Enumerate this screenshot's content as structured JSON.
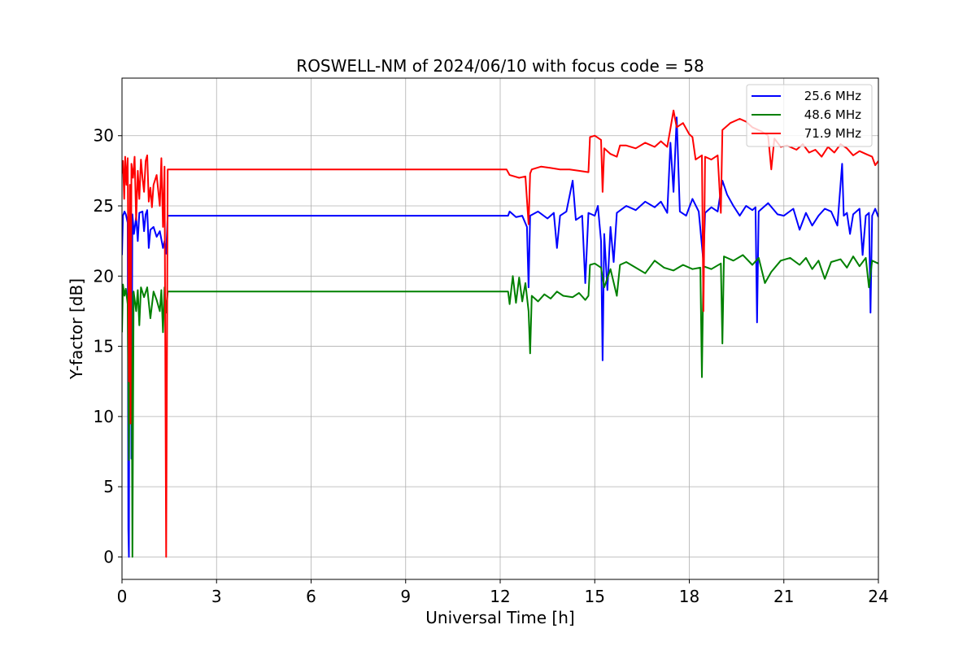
{
  "chart_data": {
    "type": "line",
    "title": "ROSWELL-NM of 2024/06/10 with focus code = 58",
    "xlabel": "Universal Time [h]",
    "ylabel": "Y-factor [dB]",
    "xlim": [
      0,
      24
    ],
    "ylim": [
      -1.6,
      34.1
    ],
    "xticks": [
      0,
      3,
      6,
      9,
      12,
      15,
      18,
      21,
      24
    ],
    "yticks": [
      0,
      5,
      10,
      15,
      20,
      25,
      30
    ],
    "grid": true,
    "legend_position": "top-right",
    "series": [
      {
        "name": "25.6 MHz",
        "color": "#0000ff",
        "points": [
          [
            0.0,
            21.5
          ],
          [
            0.03,
            24.3
          ],
          [
            0.08,
            24.6
          ],
          [
            0.12,
            24.4
          ],
          [
            0.18,
            23.8
          ],
          [
            0.2,
            2.0
          ],
          [
            0.22,
            0.0
          ],
          [
            0.24,
            24.0
          ],
          [
            0.28,
            24.5
          ],
          [
            0.3,
            7.0
          ],
          [
            0.33,
            24.4
          ],
          [
            0.38,
            23.0
          ],
          [
            0.45,
            24.2
          ],
          [
            0.5,
            22.5
          ],
          [
            0.55,
            24.5
          ],
          [
            0.65,
            24.6
          ],
          [
            0.7,
            23.2
          ],
          [
            0.75,
            24.4
          ],
          [
            0.8,
            24.7
          ],
          [
            0.85,
            22.0
          ],
          [
            0.9,
            23.3
          ],
          [
            1.0,
            23.5
          ],
          [
            1.1,
            22.8
          ],
          [
            1.2,
            23.2
          ],
          [
            1.3,
            22.0
          ],
          [
            1.35,
            22.5
          ],
          [
            1.4,
            21.6
          ],
          [
            1.45,
            24.3
          ],
          [
            12.25,
            24.3
          ],
          [
            12.3,
            24.6
          ],
          [
            12.5,
            24.2
          ],
          [
            12.7,
            24.3
          ],
          [
            12.85,
            23.5
          ],
          [
            12.9,
            19.2
          ],
          [
            12.95,
            24.3
          ],
          [
            13.2,
            24.6
          ],
          [
            13.5,
            24.1
          ],
          [
            13.7,
            24.5
          ],
          [
            13.8,
            22.0
          ],
          [
            13.9,
            24.3
          ],
          [
            14.1,
            24.6
          ],
          [
            14.3,
            26.8
          ],
          [
            14.4,
            24.0
          ],
          [
            14.6,
            24.3
          ],
          [
            14.7,
            19.5
          ],
          [
            14.8,
            24.5
          ],
          [
            15.0,
            24.3
          ],
          [
            15.1,
            25.0
          ],
          [
            15.2,
            22.5
          ],
          [
            15.25,
            14.0
          ],
          [
            15.3,
            23.0
          ],
          [
            15.4,
            19.0
          ],
          [
            15.5,
            23.5
          ],
          [
            15.6,
            21.0
          ],
          [
            15.7,
            24.5
          ],
          [
            16.0,
            25.0
          ],
          [
            16.3,
            24.7
          ],
          [
            16.6,
            25.3
          ],
          [
            16.9,
            24.9
          ],
          [
            17.1,
            25.3
          ],
          [
            17.3,
            24.5
          ],
          [
            17.4,
            29.5
          ],
          [
            17.5,
            26.0
          ],
          [
            17.6,
            31.3
          ],
          [
            17.7,
            24.6
          ],
          [
            17.9,
            24.3
          ],
          [
            18.1,
            25.5
          ],
          [
            18.3,
            24.6
          ],
          [
            18.45,
            21.0
          ],
          [
            18.5,
            24.5
          ],
          [
            18.7,
            24.9
          ],
          [
            18.9,
            24.6
          ],
          [
            19.05,
            26.8
          ],
          [
            19.2,
            25.8
          ],
          [
            19.4,
            25.0
          ],
          [
            19.6,
            24.3
          ],
          [
            19.8,
            25.0
          ],
          [
            20.0,
            24.7
          ],
          [
            20.1,
            24.9
          ],
          [
            20.15,
            16.7
          ],
          [
            20.2,
            24.6
          ],
          [
            20.5,
            25.2
          ],
          [
            20.8,
            24.4
          ],
          [
            21.0,
            24.3
          ],
          [
            21.3,
            24.8
          ],
          [
            21.5,
            23.3
          ],
          [
            21.7,
            24.5
          ],
          [
            21.9,
            23.6
          ],
          [
            22.1,
            24.3
          ],
          [
            22.3,
            24.8
          ],
          [
            22.5,
            24.6
          ],
          [
            22.7,
            23.6
          ],
          [
            22.85,
            28.0
          ],
          [
            22.9,
            24.3
          ],
          [
            23.0,
            24.5
          ],
          [
            23.1,
            23.0
          ],
          [
            23.2,
            24.4
          ],
          [
            23.4,
            24.8
          ],
          [
            23.5,
            21.5
          ],
          [
            23.6,
            24.3
          ],
          [
            23.7,
            24.5
          ],
          [
            23.75,
            17.4
          ],
          [
            23.8,
            24.3
          ],
          [
            23.9,
            24.8
          ],
          [
            24.0,
            24.2
          ]
        ]
      },
      {
        "name": "48.6 MHz",
        "color": "#008000",
        "points": [
          [
            0.0,
            16.0
          ],
          [
            0.03,
            19.4
          ],
          [
            0.08,
            18.6
          ],
          [
            0.12,
            19.1
          ],
          [
            0.18,
            18.0
          ],
          [
            0.22,
            6.9
          ],
          [
            0.25,
            19.0
          ],
          [
            0.28,
            11.1
          ],
          [
            0.3,
            18.8
          ],
          [
            0.33,
            0.0
          ],
          [
            0.37,
            18.9
          ],
          [
            0.45,
            17.5
          ],
          [
            0.5,
            19.0
          ],
          [
            0.55,
            16.5
          ],
          [
            0.6,
            19.2
          ],
          [
            0.7,
            18.5
          ],
          [
            0.8,
            19.2
          ],
          [
            0.9,
            17.0
          ],
          [
            1.0,
            18.9
          ],
          [
            1.1,
            18.3
          ],
          [
            1.2,
            17.5
          ],
          [
            1.25,
            19.0
          ],
          [
            1.3,
            16.0
          ],
          [
            1.35,
            19.2
          ],
          [
            1.4,
            17.4
          ],
          [
            1.45,
            18.9
          ],
          [
            12.25,
            18.9
          ],
          [
            12.3,
            18.0
          ],
          [
            12.4,
            20.0
          ],
          [
            12.5,
            18.1
          ],
          [
            12.6,
            19.9
          ],
          [
            12.7,
            18.2
          ],
          [
            12.8,
            19.5
          ],
          [
            12.9,
            17.5
          ],
          [
            12.95,
            14.5
          ],
          [
            13.0,
            18.6
          ],
          [
            13.2,
            18.2
          ],
          [
            13.4,
            18.7
          ],
          [
            13.6,
            18.4
          ],
          [
            13.8,
            18.9
          ],
          [
            14.0,
            18.6
          ],
          [
            14.3,
            18.5
          ],
          [
            14.5,
            18.8
          ],
          [
            14.7,
            18.3
          ],
          [
            14.8,
            18.6
          ],
          [
            14.85,
            20.8
          ],
          [
            15.0,
            20.9
          ],
          [
            15.2,
            20.6
          ],
          [
            15.3,
            19.2
          ],
          [
            15.5,
            20.5
          ],
          [
            15.7,
            18.6
          ],
          [
            15.8,
            20.8
          ],
          [
            16.0,
            21.0
          ],
          [
            16.3,
            20.6
          ],
          [
            16.6,
            20.2
          ],
          [
            16.9,
            21.1
          ],
          [
            17.2,
            20.6
          ],
          [
            17.5,
            20.4
          ],
          [
            17.8,
            20.8
          ],
          [
            18.1,
            20.5
          ],
          [
            18.35,
            20.6
          ],
          [
            18.4,
            12.8
          ],
          [
            18.45,
            20.7
          ],
          [
            18.7,
            20.5
          ],
          [
            19.0,
            20.9
          ],
          [
            19.05,
            15.2
          ],
          [
            19.1,
            21.4
          ],
          [
            19.4,
            21.1
          ],
          [
            19.7,
            21.5
          ],
          [
            20.0,
            20.8
          ],
          [
            20.2,
            21.3
          ],
          [
            20.4,
            19.5
          ],
          [
            20.6,
            20.3
          ],
          [
            20.9,
            21.1
          ],
          [
            21.2,
            21.3
          ],
          [
            21.5,
            20.8
          ],
          [
            21.7,
            21.3
          ],
          [
            21.9,
            20.5
          ],
          [
            22.1,
            21.1
          ],
          [
            22.3,
            19.8
          ],
          [
            22.5,
            21.0
          ],
          [
            22.8,
            21.2
          ],
          [
            23.0,
            20.6
          ],
          [
            23.2,
            21.4
          ],
          [
            23.4,
            20.7
          ],
          [
            23.6,
            21.3
          ],
          [
            23.7,
            19.2
          ],
          [
            23.8,
            21.1
          ],
          [
            24.0,
            20.9
          ]
        ]
      },
      {
        "name": "71.9 MHz",
        "color": "#ff0000",
        "points": [
          [
            0.0,
            27.3
          ],
          [
            0.03,
            28.2
          ],
          [
            0.07,
            25.5
          ],
          [
            0.1,
            28.5
          ],
          [
            0.14,
            26.5
          ],
          [
            0.18,
            28.4
          ],
          [
            0.2,
            20.0
          ],
          [
            0.22,
            12.5
          ],
          [
            0.25,
            26.5
          ],
          [
            0.27,
            9.5
          ],
          [
            0.3,
            28.0
          ],
          [
            0.35,
            27.0
          ],
          [
            0.4,
            28.5
          ],
          [
            0.45,
            24.0
          ],
          [
            0.5,
            27.5
          ],
          [
            0.55,
            25.5
          ],
          [
            0.6,
            28.3
          ],
          [
            0.65,
            27.0
          ],
          [
            0.7,
            26.0
          ],
          [
            0.75,
            28.2
          ],
          [
            0.8,
            28.6
          ],
          [
            0.85,
            25.3
          ],
          [
            0.9,
            26.3
          ],
          [
            0.95,
            24.9
          ],
          [
            1.0,
            26.5
          ],
          [
            1.1,
            27.2
          ],
          [
            1.2,
            25.0
          ],
          [
            1.25,
            28.4
          ],
          [
            1.3,
            23.5
          ],
          [
            1.35,
            27.8
          ],
          [
            1.4,
            0.0
          ],
          [
            1.45,
            27.6
          ],
          [
            12.2,
            27.6
          ],
          [
            12.3,
            27.2
          ],
          [
            12.6,
            27.0
          ],
          [
            12.8,
            27.1
          ],
          [
            12.9,
            23.7
          ],
          [
            12.95,
            27.3
          ],
          [
            13.0,
            27.6
          ],
          [
            13.3,
            27.8
          ],
          [
            13.6,
            27.7
          ],
          [
            13.9,
            27.6
          ],
          [
            14.2,
            27.6
          ],
          [
            14.5,
            27.5
          ],
          [
            14.8,
            27.4
          ],
          [
            14.85,
            29.9
          ],
          [
            15.0,
            30.0
          ],
          [
            15.2,
            29.7
          ],
          [
            15.25,
            26.0
          ],
          [
            15.3,
            29.1
          ],
          [
            15.5,
            28.7
          ],
          [
            15.7,
            28.5
          ],
          [
            15.8,
            29.3
          ],
          [
            16.0,
            29.3
          ],
          [
            16.3,
            29.1
          ],
          [
            16.6,
            29.5
          ],
          [
            16.9,
            29.2
          ],
          [
            17.1,
            29.6
          ],
          [
            17.3,
            29.2
          ],
          [
            17.4,
            30.5
          ],
          [
            17.5,
            31.8
          ],
          [
            17.6,
            30.6
          ],
          [
            17.8,
            30.9
          ],
          [
            18.0,
            30.1
          ],
          [
            18.1,
            29.9
          ],
          [
            18.2,
            28.3
          ],
          [
            18.4,
            28.6
          ],
          [
            18.45,
            17.5
          ],
          [
            18.5,
            28.5
          ],
          [
            18.7,
            28.3
          ],
          [
            18.9,
            28.6
          ],
          [
            19.0,
            24.5
          ],
          [
            19.05,
            30.4
          ],
          [
            19.3,
            30.9
          ],
          [
            19.6,
            31.2
          ],
          [
            19.8,
            31.0
          ],
          [
            20.0,
            30.6
          ],
          [
            20.3,
            30.3
          ],
          [
            20.5,
            30.0
          ],
          [
            20.6,
            27.6
          ],
          [
            20.7,
            29.8
          ],
          [
            20.9,
            29.2
          ],
          [
            21.1,
            29.3
          ],
          [
            21.4,
            29.0
          ],
          [
            21.6,
            29.4
          ],
          [
            21.8,
            28.8
          ],
          [
            22.0,
            29.0
          ],
          [
            22.2,
            28.5
          ],
          [
            22.4,
            29.2
          ],
          [
            22.6,
            28.8
          ],
          [
            22.8,
            29.4
          ],
          [
            23.0,
            29.1
          ],
          [
            23.2,
            28.6
          ],
          [
            23.4,
            28.9
          ],
          [
            23.6,
            28.7
          ],
          [
            23.8,
            28.5
          ],
          [
            23.9,
            27.9
          ],
          [
            24.0,
            28.2
          ]
        ]
      }
    ]
  }
}
